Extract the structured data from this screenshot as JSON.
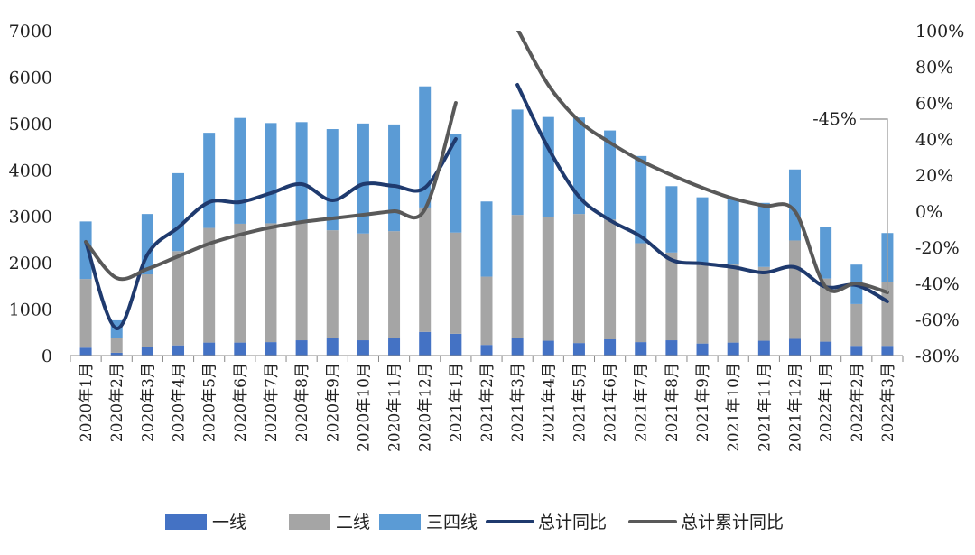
{
  "chart_data": {
    "type": "bar",
    "stacked": true,
    "categories": [
      "2020年1月",
      "2020年2月",
      "2020年3月",
      "2020年4月",
      "2020年5月",
      "2020年6月",
      "2020年7月",
      "2020年8月",
      "2020年9月",
      "2020年10月",
      "2020年11月",
      "2020年12月",
      "2021年1月",
      "2021年2月",
      "2021年3月",
      "2021年4月",
      "2021年5月",
      "2021年6月",
      "2021年7月",
      "2021年8月",
      "2021年9月",
      "2021年10月",
      "2021年11月",
      "2021年12月",
      "2022年1月",
      "2022年2月",
      "2022年3月"
    ],
    "series": [
      {
        "name": "一线",
        "kind": "bar",
        "axis": "left",
        "color": "#4472c4",
        "values": [
          170,
          60,
          180,
          220,
          280,
          280,
          290,
          330,
          380,
          330,
          380,
          510,
          470,
          230,
          380,
          320,
          270,
          350,
          290,
          330,
          260,
          280,
          320,
          360,
          300,
          210,
          210
        ]
      },
      {
        "name": "二线",
        "kind": "bar",
        "axis": "left",
        "color": "#a5a5a5",
        "values": [
          1480,
          320,
          1570,
          2030,
          2470,
          2560,
          2560,
          2520,
          2320,
          2300,
          2300,
          2680,
          2180,
          1470,
          2650,
          2660,
          2780,
          2580,
          2130,
          1890,
          1710,
          1680,
          1590,
          2120,
          1360,
          900,
          1380
        ]
      },
      {
        "name": "三四线",
        "kind": "bar",
        "axis": "left",
        "color": "#5b9bd5",
        "values": [
          1240,
          380,
          1300,
          1680,
          2050,
          2280,
          2160,
          2180,
          2180,
          2370,
          2300,
          2610,
          2120,
          1620,
          2270,
          2160,
          2080,
          1920,
          1880,
          1430,
          1440,
          1430,
          1380,
          1530,
          1110,
          850,
          1050
        ]
      },
      {
        "name": "总计同比",
        "kind": "line",
        "axis": "right",
        "color": "#1f3a6e",
        "values": [
          -17,
          -65,
          -24,
          -9,
          5,
          5,
          10,
          15,
          6,
          15,
          14,
          13,
          40,
          null,
          70,
          35,
          8,
          -5,
          -14,
          -27,
          -29,
          -31,
          -34,
          -31,
          -42,
          -41,
          -50
        ]
      },
      {
        "name": "总计累计同比",
        "kind": "line",
        "axis": "right",
        "color": "#595959",
        "values": [
          -17,
          -37,
          -32,
          -25,
          -18,
          -13,
          -9,
          -6,
          -4,
          -2,
          0,
          1,
          60,
          null,
          101,
          70,
          50,
          38,
          28,
          20,
          13,
          7,
          3,
          0,
          -42,
          -40,
          -45
        ]
      }
    ],
    "left_axis": {
      "ylim": [
        0,
        7000
      ],
      "ticks": [
        "0",
        "1000",
        "2000",
        "3000",
        "4000",
        "5000",
        "6000",
        "7000"
      ]
    },
    "right_axis": {
      "ylim": [
        -80,
        100
      ],
      "ticks": [
        "-80%",
        "-60%",
        "-40%",
        "-20%",
        "0%",
        "20%",
        "40%",
        "60%",
        "80%",
        "100%"
      ]
    },
    "annotation": "-45%",
    "legend": {
      "position": "bottom"
    },
    "grid": false
  }
}
